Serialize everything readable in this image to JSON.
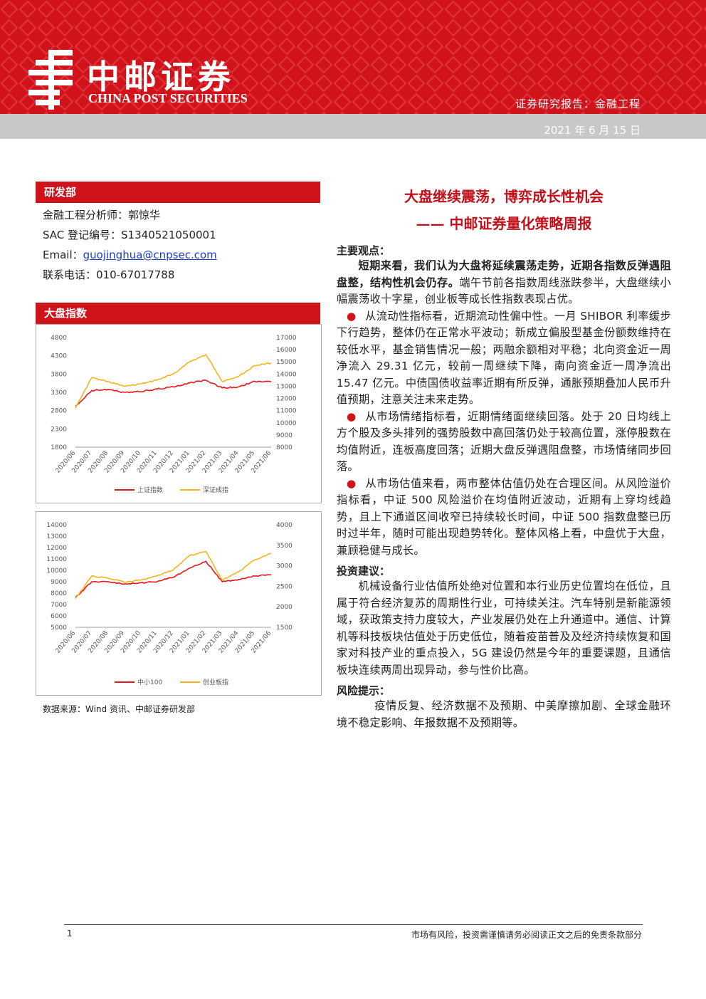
{
  "header": {
    "brand_cn": "中邮证券",
    "brand_en": "CHINA POST SECURITIES",
    "report_type": "证券研究报告：金融工程",
    "date": "2021 年 6 月 15 日",
    "color": "#d0121b"
  },
  "left": {
    "dept_title": "研发部",
    "analyst": "金融工程分析师：郭惊华",
    "sac": "SAC 登记编号：S1340521050001",
    "email_label": "Email：",
    "email": "guojinghua@cnpsec.com",
    "phone": "联系电话：010-67017788",
    "index_title": "大盘指数",
    "source": "数据来源：Wind 资讯、中邮证券研发部"
  },
  "chart_data": [
    {
      "type": "line",
      "x": [
        "2020/06",
        "2020/07",
        "2020/08",
        "2020/09",
        "2020/10",
        "2020/11",
        "2020/12",
        "2021/01",
        "2021/02",
        "2021/03",
        "2021/04",
        "2021/05",
        "2021/06"
      ],
      "series": [
        {
          "name": "上证指数",
          "axis": "left",
          "color": "#e8141c",
          "values": [
            2920,
            3350,
            3380,
            3300,
            3320,
            3390,
            3450,
            3560,
            3630,
            3420,
            3450,
            3600,
            3590
          ]
        },
        {
          "name": "深证成指",
          "axis": "right",
          "color": "#f6b41a",
          "values": [
            11200,
            13700,
            13400,
            13000,
            13200,
            13500,
            14000,
            15000,
            15600,
            13400,
            13800,
            14700,
            14900
          ]
        }
      ],
      "ylim_left": [
        1800,
        4800
      ],
      "yticks_left": [
        "4800",
        "4300",
        "3800",
        "3300",
        "2800",
        "2300",
        "1800"
      ],
      "ylim_right": [
        8000,
        17000
      ],
      "yticks_right": [
        "17000",
        "16000",
        "15000",
        "14000",
        "13000",
        "12000",
        "11000",
        "10000",
        "9000",
        "8000"
      ]
    },
    {
      "type": "line",
      "x": [
        "2020/06",
        "2020/07",
        "2020/08",
        "2020/09",
        "2020/10",
        "2020/11",
        "2020/12",
        "2021/01",
        "2021/02",
        "2021/03",
        "2021/04",
        "2021/05",
        "2021/06"
      ],
      "series": [
        {
          "name": "中小100",
          "axis": "left",
          "color": "#e8141c",
          "values": [
            7600,
            9000,
            9000,
            8800,
            8900,
            9000,
            9400,
            10200,
            10800,
            9000,
            9200,
            9500,
            9600
          ]
        },
        {
          "name": "创业板指",
          "axis": "right",
          "color": "#f6b41a",
          "values": [
            2200,
            2750,
            2700,
            2600,
            2650,
            2750,
            2900,
            3250,
            3350,
            2650,
            2850,
            3150,
            3300
          ]
        }
      ],
      "ylim_left": [
        5000,
        14000
      ],
      "yticks_left": [
        "14000",
        "13000",
        "12000",
        "11000",
        "10000",
        "9000",
        "8000",
        "7000",
        "6000",
        "5000"
      ],
      "ylim_right": [
        1500,
        4000
      ],
      "yticks_right": [
        "4000",
        "3500",
        "3000",
        "2500",
        "2000",
        "1500"
      ]
    }
  ],
  "right": {
    "title1": "大盘继续震荡，博弈成长性机会",
    "title2": "—— 中邮证券量化策略周报",
    "h_main": "主要观点：",
    "p1_bold": "短期来看，我们认为大盘将延续震荡走势，近期各指数反弹遇阻盘整，结构性机会仍存。",
    "p1_rest": "端午节前各指数周线涨跌参半，大盘继续小幅震荡收十字星，创业板等成长性指数表现占优。",
    "b1": "从流动性指标看，近期流动性偏中性。一月 SHIBOR 利率缓步下行趋势，整体仍在正常水平波动；新成立偏股型基金份额数维持在较低水平，基金销售情况一般；两融余额相对平稳；北向资金近一周净流入 29.31 亿元，较前一周继续下降，南向资金近一周净流出 15.47 亿元。中债国债收益率近期有所反弹，通胀预期叠加人民币升值预期，注意关注未来走势。",
    "b2": "从市场情绪指标看，近期情绪面继续回落。处于 20 日均线上方个股及多头排列的强势股数中高回落仍处于较高位置，涨停股数在均值附近，连板高度回落；近期大盘反弹遇阻盘整，市场情绪同步回落。",
    "b3": "从市场估值来看，两市整体估值仍处在合理区间。从风险溢价指标看，中证 500 风险溢价在均值附近波动，近期有上穿均线趋势，且上下通道区间收窄已持续较长时间，中证 500 指数盘整已历时过半年，随时可能出现趋势转化。整体风格上看，中盘优于大盘，兼顾稳健与成长。",
    "h_invest": "投资建议：",
    "p_invest": "机械设备行业估值所处绝对位置和本行业历史位置均在低位，且属于符合经济复苏的周期性行业，可持续关注。汽车特别是新能源领域，获政策支持力度较大，产业发展仍处在上升通道中。通信、计算机等科技板块估值处于历史低位，随着疫苗普及及经济持续恢复和国家对科技产业的重点投入，5G 建设仍然是今年的重要课题，且通信板块连续两周出现异动，参与性价比高。",
    "h_risk": "风险提示：",
    "p_risk": "疫情反复、经济数据不及预期、中美摩擦加剧、全球金融环境不稳定影响、年报数据不及预期等。"
  },
  "footer": {
    "page": "1",
    "disclaimer": "市场有风险，投资需谨慎请务必阅读正文之后的免责条款部分"
  }
}
